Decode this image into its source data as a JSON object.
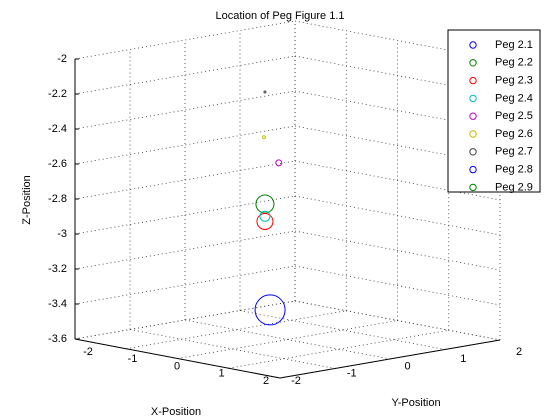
{
  "chart_data": {
    "type": "scatter3d",
    "title": "Location of Peg Figure 1.1",
    "x_label": "X-Position",
    "y_label": "Y-Position",
    "z_label": "Z-Position",
    "xlim": [
      -2,
      2
    ],
    "xticks": [
      -2,
      -1,
      0,
      1,
      2
    ],
    "ylim": [
      -2,
      2
    ],
    "yticks": [
      -2,
      -1,
      0,
      1,
      2
    ],
    "zlim": [
      -3.6,
      -2
    ],
    "zticks": [
      -2,
      -2.2,
      -2.4,
      -2.6,
      -2.8,
      -3,
      -3.2,
      -3.4,
      -3.6
    ],
    "grid": true,
    "legend": "upper right",
    "series": [
      {
        "name": "Peg 2.1",
        "color": "#0000ff",
        "x": -0.34,
        "y": 0,
        "z": -3.45,
        "size": 15
      },
      {
        "name": "Peg 2.2",
        "color": "#008000",
        "x": -0.44,
        "y": 0,
        "z": -2.85,
        "size": 9
      },
      {
        "name": "Peg 2.3",
        "color": "#ff0000",
        "x": -0.44,
        "y": 0,
        "z": -2.95,
        "size": 8
      },
      {
        "name": "Peg 2.4",
        "color": "#00bfbf",
        "x": -0.44,
        "y": 0,
        "z": -2.92,
        "size": 5
      },
      {
        "name": "Peg 2.5",
        "color": "#bf00bf",
        "x": -0.17,
        "y": 0,
        "z": -2.6,
        "size": 3
      },
      {
        "name": "Peg 2.6",
        "color": "#bfbf00",
        "x": -0.46,
        "y": 0,
        "z": -2.47,
        "size": 1.5
      },
      {
        "name": "Peg 2.7",
        "color": "#404040",
        "x": -0.44,
        "y": 0,
        "z": -2.21,
        "size": 1
      },
      {
        "name": "Peg 2.8",
        "color": "#0000ff",
        "x": null,
        "y": null,
        "z": null,
        "size": null
      },
      {
        "name": "Peg 2.9",
        "color": "#008000",
        "x": null,
        "y": null,
        "z": null,
        "size": null
      }
    ]
  }
}
